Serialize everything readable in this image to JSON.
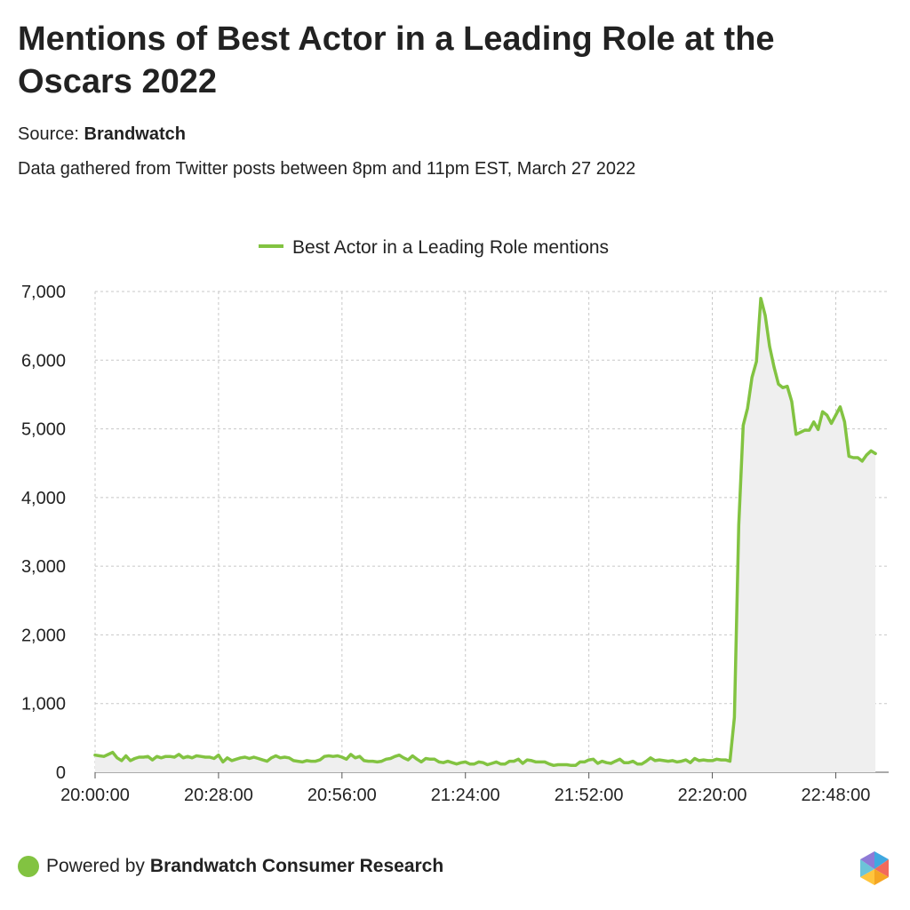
{
  "header": {
    "title": "Mentions of Best Actor in a Leading Role at the Oscars 2022",
    "source_prefix": "Source:",
    "source_name": "Brandwatch",
    "note": "Data gathered from Twitter posts between 8pm and 11pm EST, March 27 2022"
  },
  "footer": {
    "powered_prefix": "Powered by",
    "powered_name": "Brandwatch Consumer Research"
  },
  "colors": {
    "line": "#82c341",
    "area": "#efefef",
    "grid": "#c8c8c8",
    "text": "#222222"
  },
  "icons": {
    "footer_dot": "green-circle-icon",
    "logo": "brandwatch-hexagon-logo-icon"
  },
  "chart_data": {
    "type": "area",
    "title": "Mentions of Best Actor in a Leading Role at the Oscars 2022",
    "xlabel": "",
    "ylabel": "",
    "ylim": [
      0,
      7000
    ],
    "yticks": [
      0,
      1000,
      2000,
      3000,
      4000,
      5000,
      6000,
      7000
    ],
    "ytick_labels": [
      "0",
      "1,000",
      "2,000",
      "3,000",
      "4,000",
      "5,000",
      "6,000",
      "7,000"
    ],
    "xticks": [
      "20:00:00",
      "20:28:00",
      "20:56:00",
      "21:24:00",
      "21:52:00",
      "22:20:00",
      "22:48:00"
    ],
    "xlim": [
      "20:00:00",
      "23:00:00"
    ],
    "interval": "1 minute",
    "legend": "top-center",
    "grid": true,
    "series": [
      {
        "name": "Best Actor in a Leading Role mentions",
        "color": "#82c341",
        "x_start": "20:00:00",
        "values": [
          250,
          240,
          230,
          260,
          290,
          210,
          170,
          240,
          170,
          200,
          220,
          220,
          230,
          180,
          230,
          210,
          230,
          230,
          220,
          260,
          210,
          230,
          210,
          240,
          230,
          220,
          220,
          200,
          250,
          150,
          210,
          170,
          190,
          210,
          220,
          200,
          220,
          200,
          180,
          160,
          210,
          240,
          210,
          220,
          210,
          170,
          160,
          150,
          170,
          160,
          160,
          180,
          230,
          240,
          230,
          240,
          220,
          190,
          260,
          210,
          230,
          170,
          160,
          160,
          150,
          160,
          190,
          200,
          230,
          250,
          210,
          180,
          240,
          190,
          150,
          200,
          190,
          190,
          150,
          140,
          160,
          140,
          120,
          140,
          150,
          120,
          120,
          150,
          140,
          110,
          130,
          150,
          120,
          120,
          160,
          160,
          190,
          130,
          180,
          170,
          150,
          150,
          150,
          120,
          100,
          110,
          110,
          110,
          100,
          100,
          150,
          150,
          180,
          190,
          130,
          160,
          140,
          130,
          160,
          190,
          140,
          140,
          160,
          120,
          120,
          160,
          210,
          170,
          180,
          170,
          160,
          170,
          150,
          160,
          180,
          140,
          200,
          170,
          180,
          170,
          170,
          190,
          180,
          180,
          160,
          800,
          3600,
          5050,
          5300,
          5750,
          5980,
          6900,
          6650,
          6200,
          5900,
          5650,
          5600,
          5620,
          5400,
          4920,
          4950,
          4980,
          4980,
          5100,
          4990,
          5250,
          5200,
          5080,
          5200,
          5320,
          5100,
          4600,
          4580,
          4580,
          4530,
          4620,
          4680,
          4640
        ]
      }
    ]
  }
}
